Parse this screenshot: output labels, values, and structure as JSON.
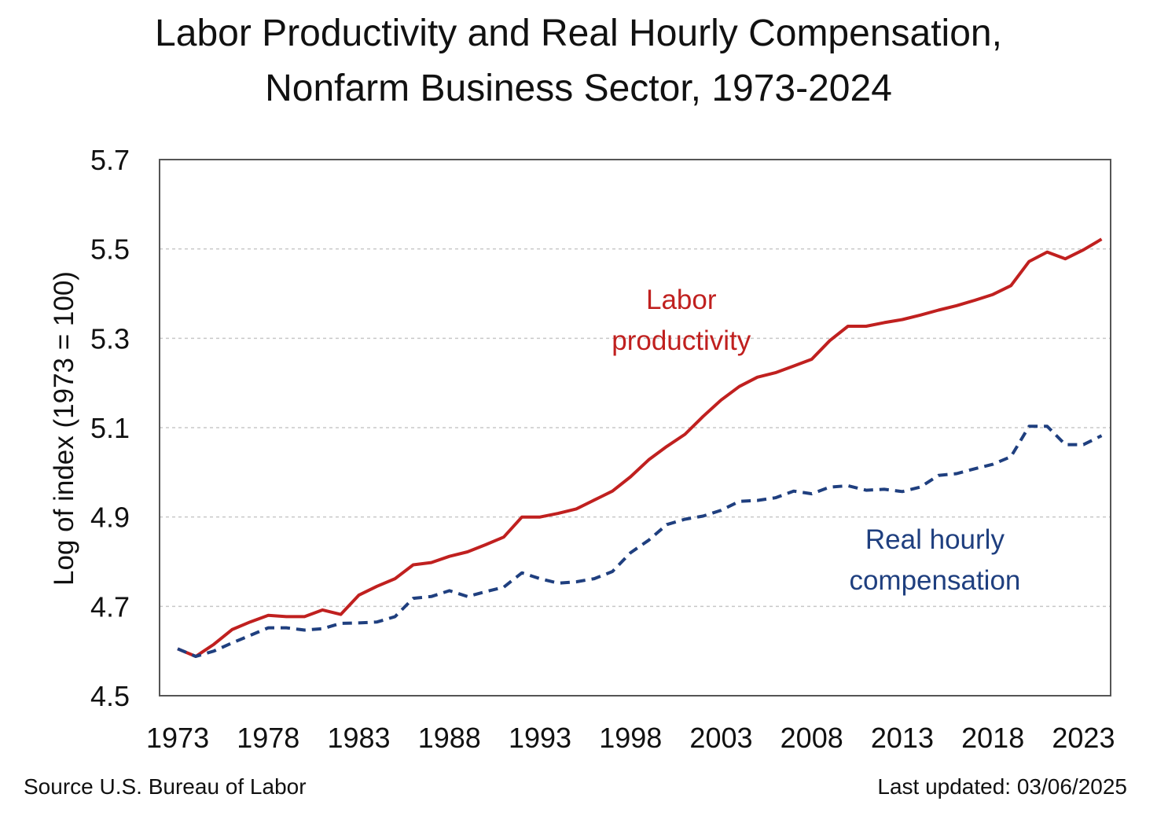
{
  "chart_data": {
    "type": "line",
    "title_lines": [
      "Labor Productivity and Real Hourly Compensation,",
      "Nonfarm Business Sector, 1973-2024"
    ],
    "ylabel": "Log of index (1973 = 100)",
    "xlabel": "",
    "ylim": [
      4.5,
      5.7
    ],
    "xlim": [
      1972,
      2024.5
    ],
    "yticks": [
      "4.5",
      "4.7",
      "4.9",
      "5.1",
      "5.3",
      "5.5",
      "5.7"
    ],
    "xticks": [
      "1973",
      "1978",
      "1983",
      "1988",
      "1993",
      "1998",
      "2003",
      "2008",
      "2013",
      "2018",
      "2023"
    ],
    "grid": "horizontal-dotted",
    "x": [
      1973,
      1974,
      1975,
      1976,
      1977,
      1978,
      1979,
      1980,
      1981,
      1982,
      1983,
      1984,
      1985,
      1986,
      1987,
      1988,
      1989,
      1990,
      1991,
      1992,
      1993,
      1994,
      1995,
      1996,
      1997,
      1998,
      1999,
      2000,
      2001,
      2002,
      2003,
      2004,
      2005,
      2006,
      2007,
      2008,
      2009,
      2010,
      2011,
      2012,
      2013,
      2014,
      2015,
      2016,
      2017,
      2018,
      2019,
      2020,
      2021,
      2022,
      2023,
      2024
    ],
    "series": [
      {
        "name": "Labor productivity",
        "color": "#c0201f",
        "style": "solid",
        "values": [
          4.605,
          4.588,
          4.615,
          4.648,
          4.665,
          4.68,
          4.677,
          4.677,
          4.692,
          4.682,
          4.725,
          4.745,
          4.762,
          4.793,
          4.798,
          4.812,
          4.822,
          4.838,
          4.855,
          4.9,
          4.9,
          4.908,
          4.918,
          4.938,
          4.958,
          4.99,
          5.028,
          5.058,
          5.085,
          5.125,
          5.162,
          5.192,
          5.213,
          5.223,
          5.238,
          5.253,
          5.295,
          5.327,
          5.327,
          5.335,
          5.342,
          5.352,
          5.363,
          5.373,
          5.385,
          5.398,
          5.418,
          5.472,
          5.493,
          5.478,
          5.498,
          5.522
        ]
      },
      {
        "name": "Real hourly compensation",
        "color": "#1f3f7f",
        "style": "dashed",
        "values": [
          4.605,
          4.588,
          4.6,
          4.618,
          4.635,
          4.652,
          4.652,
          4.647,
          4.65,
          4.662,
          4.663,
          4.665,
          4.677,
          4.718,
          4.722,
          4.735,
          4.722,
          4.733,
          4.743,
          4.775,
          4.762,
          4.752,
          4.755,
          4.762,
          4.778,
          4.82,
          4.848,
          4.883,
          4.895,
          4.902,
          4.915,
          4.935,
          4.937,
          4.943,
          4.958,
          4.952,
          4.967,
          4.97,
          4.96,
          4.962,
          4.957,
          4.967,
          4.993,
          4.997,
          5.008,
          5.018,
          5.035,
          5.103,
          5.103,
          5.062,
          5.062,
          5.082
        ]
      }
    ],
    "annotations": [
      {
        "lines": [
          "Labor",
          "productivity"
        ],
        "color": "#c0201f"
      },
      {
        "lines": [
          "Real hourly",
          "compensation"
        ],
        "color": "#1f3f7f"
      }
    ]
  },
  "footer": {
    "source": "Source U.S. Bureau of Labor",
    "updated": "Last updated: 03/06/2025"
  }
}
